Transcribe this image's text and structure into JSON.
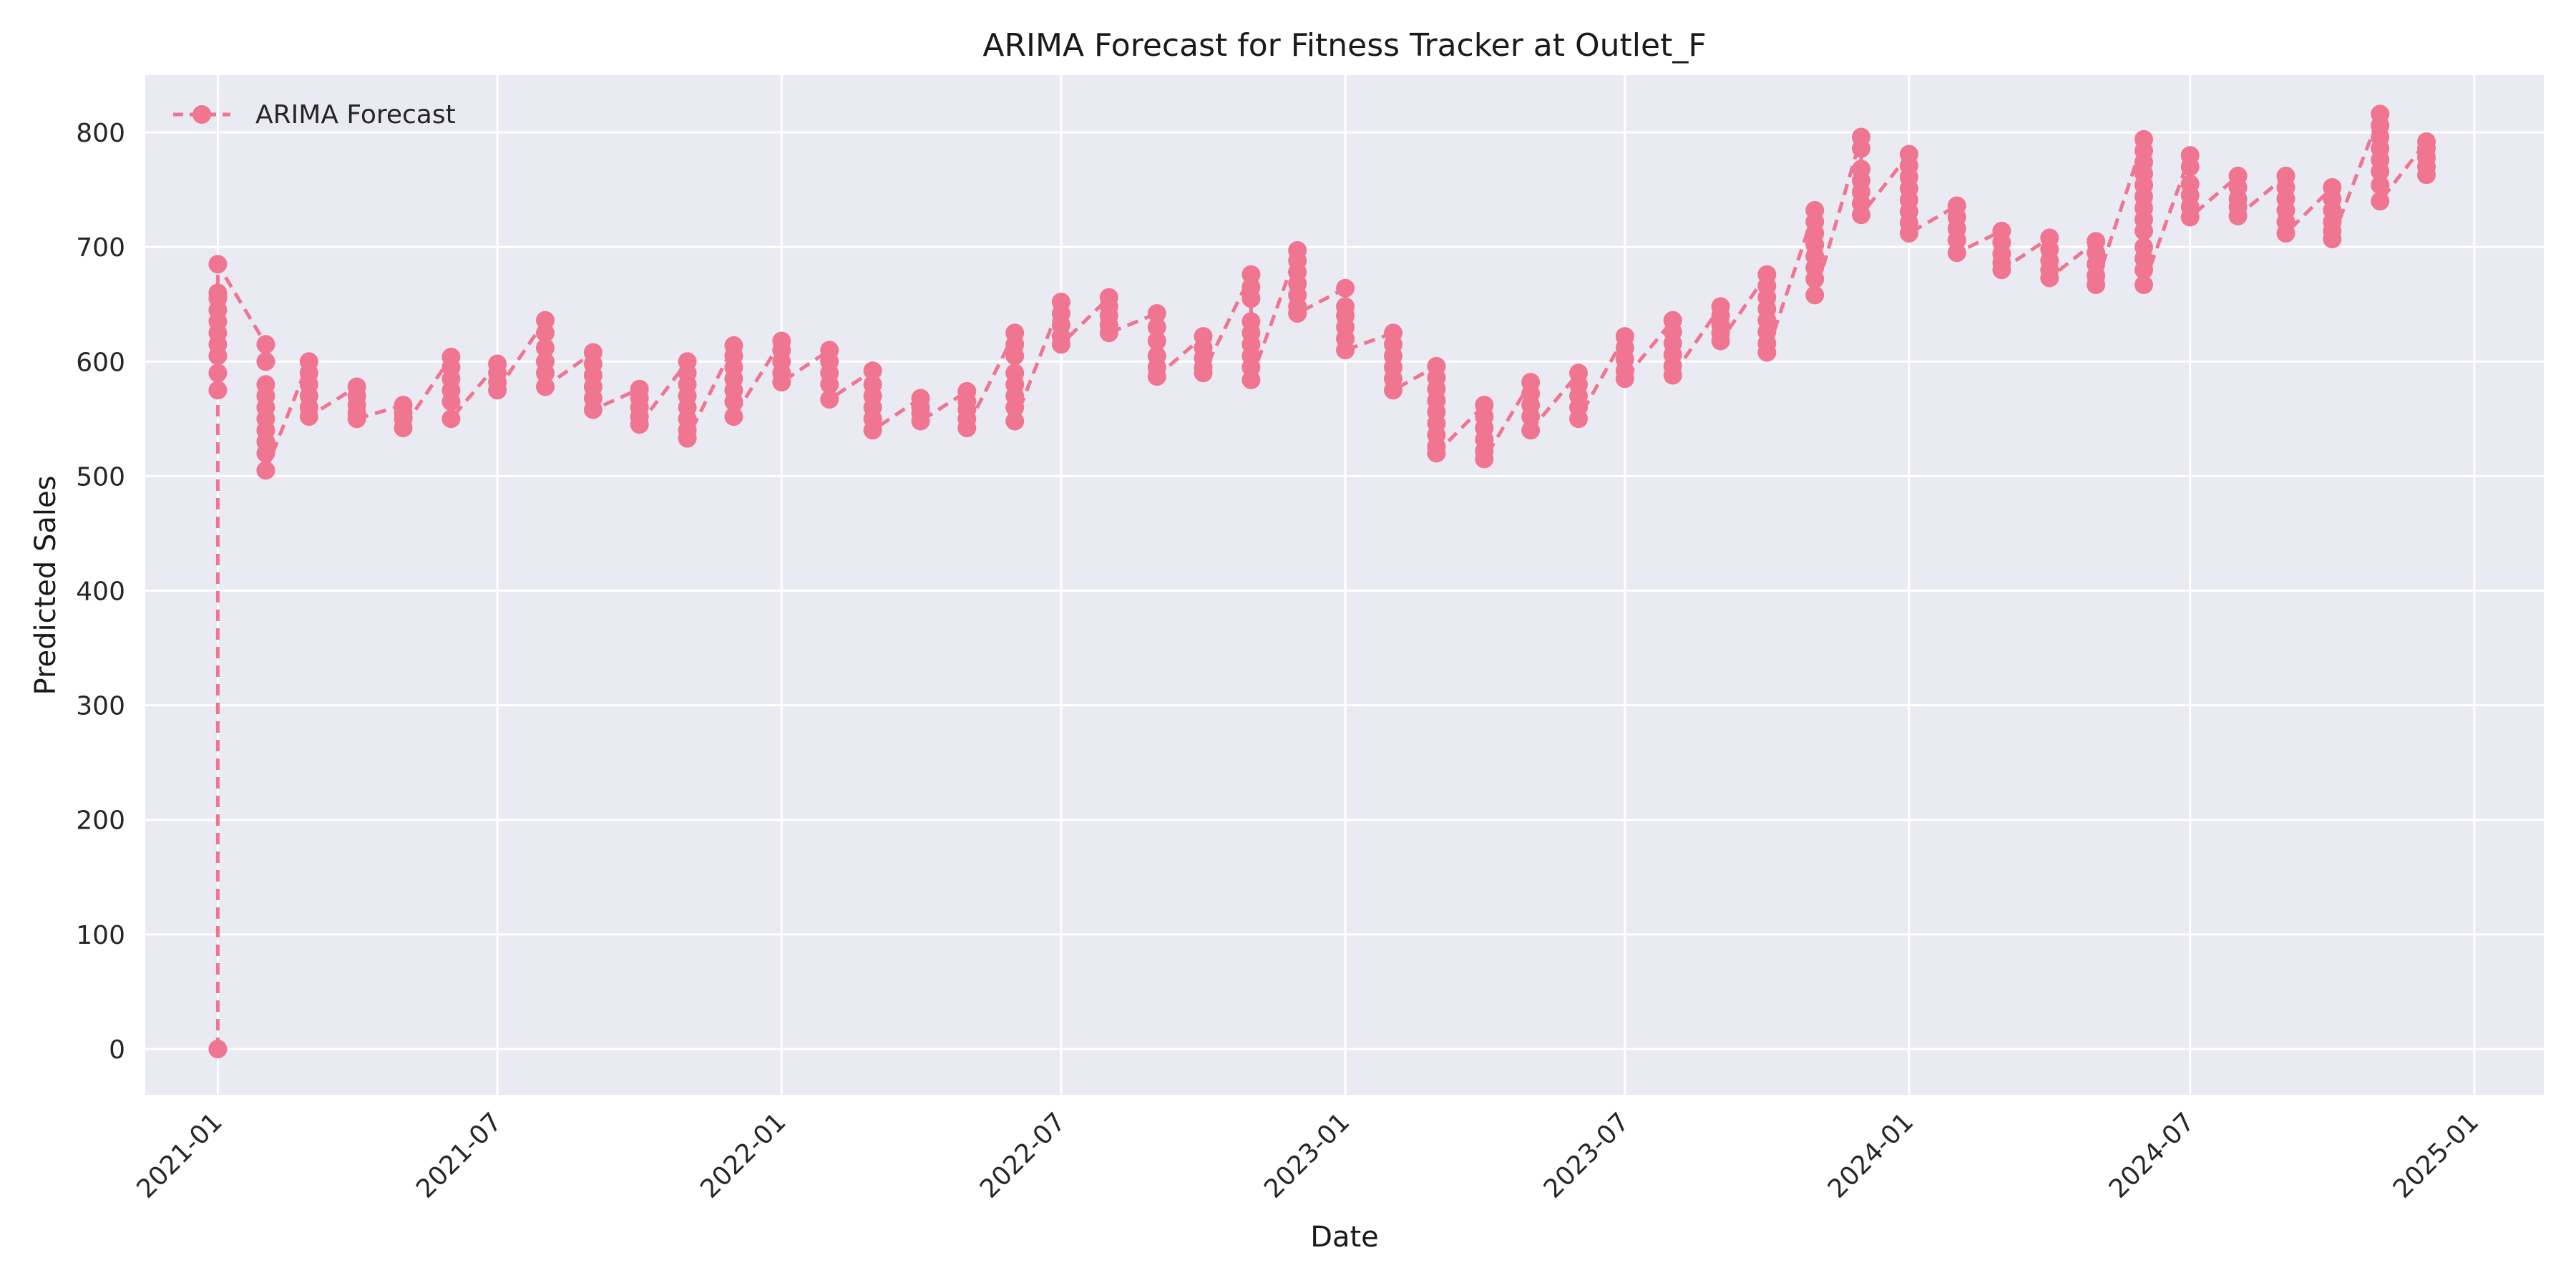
{
  "chart_data": {
    "type": "line",
    "title": "ARIMA Forecast for Fitness Tracker at Outlet_F",
    "xlabel": "Date",
    "ylabel": "Predicted Sales",
    "xlim": [
      "2020-11-15",
      "2025-02-15"
    ],
    "ylim": [
      -40,
      850
    ],
    "x_ticks": [
      "2021-01",
      "2021-07",
      "2022-01",
      "2022-07",
      "2023-01",
      "2023-07",
      "2024-01",
      "2024-07",
      "2025-01"
    ],
    "y_ticks": [
      0,
      100,
      200,
      300,
      400,
      500,
      600,
      700,
      800
    ],
    "grid": true,
    "legend_position": "top-left",
    "colors": {
      "series": "#f07590",
      "plot_background": "#eaeaf2",
      "grid": "#ffffff"
    },
    "series": [
      {
        "name": "ARIMA Forecast",
        "style": "dashed line with circle markers",
        "groups": [
          {
            "date": "2021-01-01",
            "values": [
              0,
              575,
              590,
              605,
              615,
              625,
              635,
              645,
              655,
              660,
              685
            ]
          },
          {
            "date": "2021-02-01",
            "values": [
              615,
              600,
              580,
              570,
              560,
              550,
              540,
              530,
              520,
              505
            ]
          },
          {
            "date": "2021-03-01",
            "values": [
              600,
              590,
              580,
              570,
              560,
              552
            ]
          },
          {
            "date": "2021-04-01",
            "values": [
              578,
              570,
              562,
              555,
              550
            ]
          },
          {
            "date": "2021-05-01",
            "values": [
              562,
              555,
              550,
              542
            ]
          },
          {
            "date": "2021-06-01",
            "values": [
              604,
              595,
              585,
              575,
              565,
              550
            ]
          },
          {
            "date": "2021-07-01",
            "values": [
              598,
              590,
              582,
              575
            ]
          },
          {
            "date": "2021-08-01",
            "values": [
              636,
              625,
              612,
              600,
              590,
              578
            ]
          },
          {
            "date": "2021-09-01",
            "values": [
              608,
              598,
              588,
              578,
              568,
              558
            ]
          },
          {
            "date": "2021-10-01",
            "values": [
              576,
              568,
              560,
              552,
              545
            ]
          },
          {
            "date": "2021-11-01",
            "values": [
              600,
              590,
              580,
              570,
              560,
              550,
              540,
              533
            ]
          },
          {
            "date": "2021-12-01",
            "values": [
              614,
              605,
              595,
              585,
              575,
              565,
              552
            ]
          },
          {
            "date": "2022-01-01",
            "values": [
              618,
              610,
              600,
              590,
              582
            ]
          },
          {
            "date": "2022-02-01",
            "values": [
              610,
              600,
              590,
              580,
              567
            ]
          },
          {
            "date": "2022-03-01",
            "values": [
              592,
              580,
              570,
              560,
              550,
              540
            ]
          },
          {
            "date": "2022-04-01",
            "values": [
              568,
              560,
              555,
              548
            ]
          },
          {
            "date": "2022-05-01",
            "values": [
              574,
              565,
              558,
              550,
              542
            ]
          },
          {
            "date": "2022-06-01",
            "values": [
              625,
              615,
              605,
              590,
              580,
              570,
              560,
              548
            ]
          },
          {
            "date": "2022-07-01",
            "values": [
              652,
              642,
              632,
              622,
              615
            ]
          },
          {
            "date": "2022-08-01",
            "values": [
              656,
              648,
              640,
              632,
              625
            ]
          },
          {
            "date": "2022-09-01",
            "values": [
              642,
              630,
              618,
              605,
              595,
              587
            ]
          },
          {
            "date": "2022-10-01",
            "values": [
              622,
              612,
              603,
              595,
              590
            ]
          },
          {
            "date": "2022-11-01",
            "values": [
              676,
              665,
              655,
              635,
              625,
              615,
              605,
              595,
              584
            ]
          },
          {
            "date": "2022-12-01",
            "values": [
              697,
              688,
              678,
              668,
              658,
              648,
              642
            ]
          },
          {
            "date": "2023-01-01",
            "values": [
              664,
              648,
              640,
              630,
              620,
              610
            ]
          },
          {
            "date": "2023-02-01",
            "values": [
              625,
              615,
              605,
              595,
              585,
              575
            ]
          },
          {
            "date": "2023-03-01",
            "values": [
              596,
              586,
              576,
              566,
              556,
              546,
              536,
              526,
              520
            ]
          },
          {
            "date": "2023-04-01",
            "values": [
              562,
              552,
              542,
              532,
              522,
              515
            ]
          },
          {
            "date": "2023-05-01",
            "values": [
              582,
              572,
              562,
              552,
              540
            ]
          },
          {
            "date": "2023-06-01",
            "values": [
              590,
              580,
              570,
              560,
              550
            ]
          },
          {
            "date": "2023-07-01",
            "values": [
              622,
              612,
              602,
              592,
              585
            ]
          },
          {
            "date": "2023-08-01",
            "values": [
              636,
              626,
              616,
              606,
              596,
              588
            ]
          },
          {
            "date": "2023-09-01",
            "values": [
              648,
              640,
              632,
              625,
              618
            ]
          },
          {
            "date": "2023-10-01",
            "values": [
              676,
              666,
              656,
              646,
              636,
              626,
              616,
              608
            ]
          },
          {
            "date": "2023-11-01",
            "values": [
              732,
              722,
              712,
              702,
              692,
              682,
              672,
              658
            ]
          },
          {
            "date": "2023-12-01",
            "values": [
              796,
              786,
              768,
              758,
              748,
              738,
              728
            ]
          },
          {
            "date": "2024-01-01",
            "values": [
              781,
              771,
              761,
              751,
              741,
              731,
              721,
              712
            ]
          },
          {
            "date": "2024-02-01",
            "values": [
              736,
              726,
              716,
              706,
              695
            ]
          },
          {
            "date": "2024-03-01",
            "values": [
              714,
              704,
              694,
              686,
              680
            ]
          },
          {
            "date": "2024-04-01",
            "values": [
              708,
              698,
              688,
              680,
              673
            ]
          },
          {
            "date": "2024-05-01",
            "values": [
              705,
              695,
              685,
              675,
              667
            ]
          },
          {
            "date": "2024-06-01",
            "values": [
              794,
              784,
              774,
              764,
              754,
              744,
              734,
              724,
              714,
              700,
              690,
              680,
              667
            ]
          },
          {
            "date": "2024-07-01",
            "values": [
              780,
              770,
              755,
              745,
              735,
              726
            ]
          },
          {
            "date": "2024-08-01",
            "values": [
              762,
              752,
              742,
              735,
              727
            ]
          },
          {
            "date": "2024-09-01",
            "values": [
              762,
              752,
              742,
              732,
              722,
              712
            ]
          },
          {
            "date": "2024-10-01",
            "values": [
              752,
              742,
              732,
              722,
              714,
              707
            ]
          },
          {
            "date": "2024-11-01",
            "values": [
              816,
              806,
              796,
              786,
              776,
              766,
              754,
              740
            ]
          },
          {
            "date": "2024-12-01",
            "values": [
              792,
              786,
              778,
              770,
              763
            ]
          }
        ]
      }
    ]
  }
}
